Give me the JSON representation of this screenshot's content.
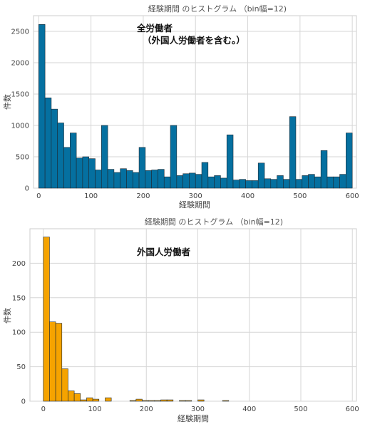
{
  "chart_data": [
    {
      "type": "bar",
      "title": "経験期間 のヒストグラム （bin幅=12)",
      "annotation": [
        "全労働者",
        "（外国人労働者を含む。）"
      ],
      "xlabel": "経験期間",
      "ylabel": "件数",
      "bin_width": 12,
      "xlim": [
        -10,
        608
      ],
      "ylim": [
        0,
        2750
      ],
      "xticks": [
        0,
        100,
        200,
        300,
        400,
        500,
        600
      ],
      "yticks": [
        0,
        500,
        1000,
        1500,
        2000,
        2500
      ],
      "bar_color": "#0570a0",
      "bins": [
        0,
        12,
        24,
        36,
        48,
        60,
        72,
        84,
        96,
        108,
        120,
        132,
        144,
        156,
        168,
        180,
        192,
        204,
        216,
        228,
        240,
        252,
        264,
        276,
        288,
        300,
        312,
        324,
        336,
        348,
        360,
        372,
        384,
        396,
        408,
        420,
        432,
        444,
        456,
        468,
        480,
        492,
        504,
        516,
        528,
        540,
        552,
        564,
        576,
        588
      ],
      "values": [
        2610,
        1440,
        1260,
        1040,
        650,
        880,
        480,
        500,
        470,
        290,
        1000,
        300,
        250,
        310,
        280,
        250,
        650,
        280,
        290,
        300,
        180,
        1000,
        200,
        230,
        240,
        220,
        410,
        180,
        200,
        160,
        850,
        130,
        140,
        120,
        120,
        400,
        150,
        140,
        200,
        140,
        1140,
        140,
        200,
        220,
        180,
        600,
        180,
        180,
        220,
        880
      ]
    },
    {
      "type": "bar",
      "title": "経験期間 のヒストグラム （bin幅=12)",
      "annotation": [
        "外国人労働者"
      ],
      "xlabel": "経験期間",
      "ylabel": "件数",
      "bin_width": 12,
      "xlim": [
        -26,
        608
      ],
      "ylim": [
        0,
        250
      ],
      "xticks": [
        0,
        100,
        200,
        300,
        400,
        500,
        600
      ],
      "yticks": [
        0,
        50,
        100,
        150,
        200
      ],
      "bar_color": "#f5a300",
      "bins": [
        0,
        12,
        24,
        36,
        48,
        60,
        72,
        84,
        96,
        108,
        120,
        132,
        144,
        156,
        168,
        180,
        192,
        204,
        216,
        228,
        240,
        252,
        264,
        276,
        288,
        300,
        312,
        324,
        336,
        348
      ],
      "values": [
        238,
        115,
        113,
        47,
        15,
        11,
        2,
        5,
        3,
        0,
        5,
        0,
        0,
        0,
        1,
        3,
        1,
        1,
        1,
        2,
        2,
        0,
        1,
        1,
        0,
        2,
        0,
        0,
        0,
        1
      ]
    }
  ]
}
